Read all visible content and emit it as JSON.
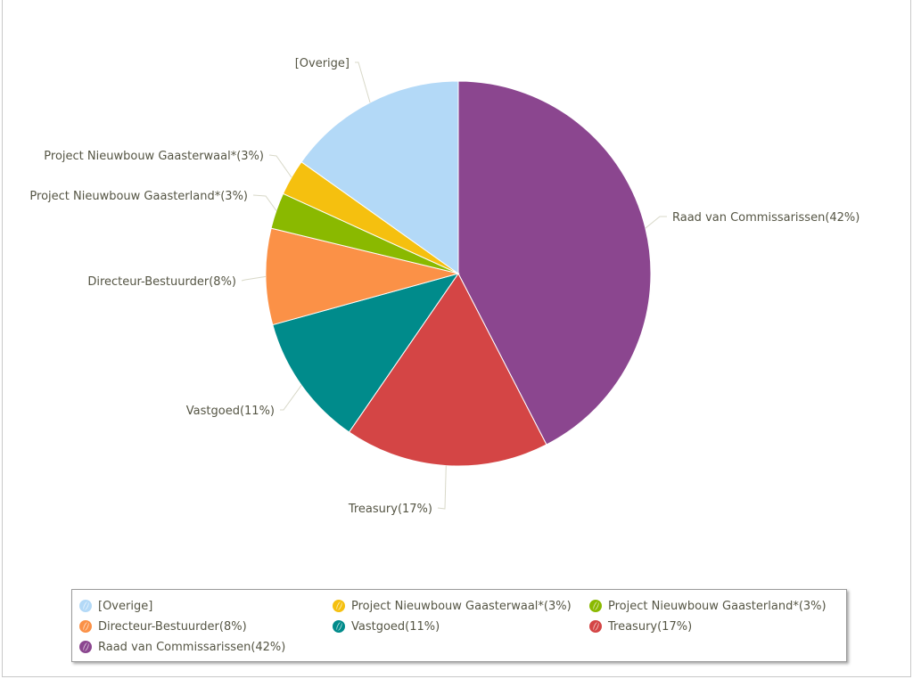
{
  "chart_data": {
    "type": "pie",
    "title": "",
    "start_angle_deg": 0,
    "slices": [
      {
        "name": "Raad van Commissarissen",
        "value": 42,
        "label": "Raad van Commissarissen(42%)",
        "color": "#8b468f"
      },
      {
        "name": "Treasury",
        "value": 17,
        "label": "Treasury(17%)",
        "color": "#d44545"
      },
      {
        "name": "Vastgoed",
        "value": 11,
        "label": "Vastgoed(11%)",
        "color": "#008b8b"
      },
      {
        "name": "Directeur-Bestuurder",
        "value": 8,
        "label": "Directeur-Bestuurder(8%)",
        "color": "#fb9147"
      },
      {
        "name": "Project Nieuwbouw Gaasterland*",
        "value": 3,
        "label": "Project Nieuwbouw Gaasterland*(3%)",
        "color": "#8ab900"
      },
      {
        "name": "Project Nieuwbouw Gaasterwaal*",
        "value": 3,
        "label": "Project Nieuwbouw Gaasterwaal*(3%)",
        "color": "#f5c00f"
      },
      {
        "name": "[Overige]",
        "value": 15,
        "label": "[Overige]",
        "color": "#b3d9f7"
      }
    ],
    "legend": {
      "position": "bottom",
      "items": [
        {
          "label": "[Overige]",
          "color": "#b3d9f7"
        },
        {
          "label": "Project Nieuwbouw Gaasterwaal*(3%)",
          "color": "#f5c00f"
        },
        {
          "label": "Project Nieuwbouw Gaasterland*(3%)",
          "color": "#8ab900"
        },
        {
          "label": "Directeur-Bestuurder(8%)",
          "color": "#fb9147"
        },
        {
          "label": "Vastgoed(11%)",
          "color": "#008b8b"
        },
        {
          "label": "Treasury(17%)",
          "color": "#d44545"
        },
        {
          "label": "Raad van Commissarissen(42%)",
          "color": "#8b468f"
        }
      ]
    }
  }
}
